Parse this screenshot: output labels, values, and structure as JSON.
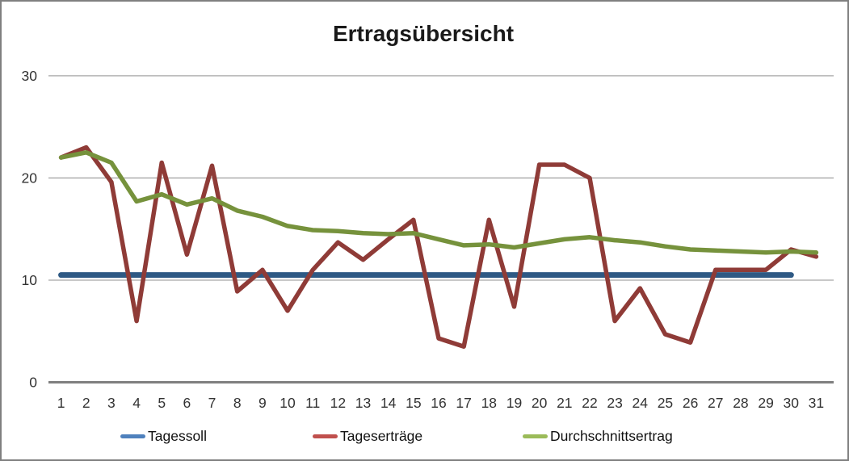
{
  "title": "Ertragsübersicht",
  "chart_data": {
    "type": "line",
    "title": "Ertragsübersicht",
    "xlabel": "",
    "ylabel": "",
    "categories": [
      1,
      2,
      3,
      4,
      5,
      6,
      7,
      8,
      9,
      10,
      11,
      12,
      13,
      14,
      15,
      16,
      17,
      18,
      19,
      20,
      21,
      22,
      23,
      24,
      25,
      26,
      27,
      28,
      29,
      30,
      31
    ],
    "ylim": [
      0,
      30
    ],
    "yticks": [
      0,
      10,
      20,
      30
    ],
    "grid": true,
    "legend_position": "bottom",
    "series": [
      {
        "name": "Tagessoll",
        "color": "#2E5984",
        "legend_color": "#4F81BD",
        "values": [
          10.5,
          10.5,
          10.5,
          10.5,
          10.5,
          10.5,
          10.5,
          10.5,
          10.5,
          10.5,
          10.5,
          10.5,
          10.5,
          10.5,
          10.5,
          10.5,
          10.5,
          10.5,
          10.5,
          10.5,
          10.5,
          10.5,
          10.5,
          10.5,
          10.5,
          10.5,
          10.5,
          10.5,
          10.5,
          10.5,
          null
        ]
      },
      {
        "name": "Tageserträge",
        "color": "#8F3B37",
        "legend_color": "#C0504D",
        "values": [
          22,
          23,
          19.6,
          6,
          21.5,
          12.5,
          21.2,
          8.9,
          11,
          7,
          11,
          13.7,
          12,
          14,
          15.9,
          4.3,
          3.5,
          15.9,
          7.4,
          21.3,
          21.3,
          20,
          6,
          9.2,
          4.7,
          3.9,
          11,
          11,
          11,
          13,
          12.3
        ]
      },
      {
        "name": "Durchschnittsertrag",
        "color": "#76923C",
        "legend_color": "#9BBB59",
        "values": [
          22.0,
          22.5,
          21.5,
          17.7,
          18.4,
          17.4,
          18.0,
          16.8,
          16.2,
          15.3,
          14.9,
          14.8,
          14.6,
          14.5,
          14.6,
          14.0,
          13.4,
          13.5,
          13.2,
          13.6,
          14.0,
          14.2,
          13.9,
          13.7,
          13.3,
          13.0,
          12.9,
          12.8,
          12.7,
          12.8,
          12.7
        ]
      }
    ]
  }
}
